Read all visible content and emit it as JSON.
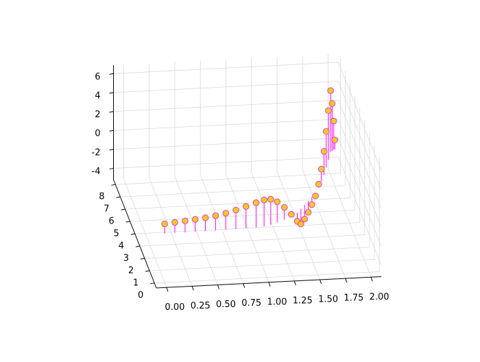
{
  "chart_data": {
    "type": "stem3d",
    "x": [
      0,
      0.1,
      0.2,
      0.3,
      0.4,
      0.5,
      0.6,
      0.7,
      0.8,
      0.9,
      0.98,
      1.05,
      1.12,
      1.2,
      1.28,
      1.35,
      1.4,
      1.45,
      1.5,
      1.55,
      1.6,
      1.65,
      1.7,
      1.75,
      1.8,
      1.85,
      1.9,
      1.92,
      1.94,
      1.95
    ],
    "y": [
      0,
      0,
      0,
      0.01,
      0.02,
      0.03,
      0.04,
      0.06,
      0.08,
      0.11,
      0.15,
      0.25,
      0.4,
      0.6,
      0.85,
      1.1,
      1.4,
      1.7,
      2.0,
      2.3,
      2.6,
      3.0,
      3.5,
      4.0,
      4.6,
      5.2,
      5.8,
      5.9,
      6.0,
      6.0
    ],
    "z": [
      1.0,
      1.1,
      1.2,
      1.3,
      1.4,
      1.55,
      1.75,
      2.0,
      2.3,
      2.6,
      2.8,
      2.7,
      2.2,
      1.3,
      0.2,
      -0.9,
      -1.6,
      -1.5,
      -1.2,
      -0.8,
      -0.3,
      0.4,
      1.3,
      2.5,
      3.8,
      5.2,
      6.5,
      5.0,
      3.0,
      1.0
    ],
    "xlim": [
      -0.1,
      2.1
    ],
    "ylim": [
      -0.4,
      8.4
    ],
    "zlim": [
      -5.2,
      6.9
    ],
    "xticks": [
      {
        "value": 0,
        "label": "0.00"
      },
      {
        "value": 0.25,
        "label": "0.25"
      },
      {
        "value": 0.5,
        "label": "0.50"
      },
      {
        "value": 0.75,
        "label": "0.75"
      },
      {
        "value": 1,
        "label": "1.00"
      },
      {
        "value": 1.25,
        "label": "1.25"
      },
      {
        "value": 1.5,
        "label": "1.50"
      },
      {
        "value": 1.75,
        "label": "1.75"
      },
      {
        "value": 2,
        "label": "2.00"
      }
    ],
    "yticks": [
      0,
      1,
      2,
      3,
      4,
      5,
      6,
      7,
      8
    ],
    "zticks": [
      -4,
      -2,
      0,
      2,
      4,
      6
    ],
    "grid": true,
    "stem_color": "#ff00ff",
    "marker_color": "#ffc81e",
    "marker_edge_color": "#d040d0"
  }
}
